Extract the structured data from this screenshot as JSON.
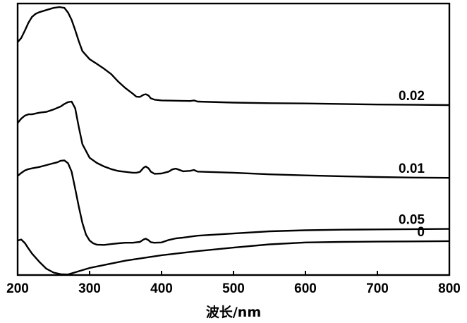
{
  "chart_data": {
    "type": "line",
    "xlabel": "波长/nm",
    "ylabel": "",
    "xlim": [
      200,
      800
    ],
    "xticks": [
      "200",
      "300",
      "400",
      "500",
      "600",
      "700",
      "800"
    ],
    "y_ticks_shown": false,
    "grid": false,
    "legend": "labels at right end of each curve",
    "series": [
      {
        "name": "0.02",
        "x": [
          200,
          205,
          210,
          215,
          220,
          225,
          230,
          240,
          250,
          258,
          265,
          270,
          275,
          280,
          285,
          290,
          300,
          310,
          320,
          330,
          340,
          350,
          360,
          365,
          370,
          375,
          378,
          382,
          385,
          390,
          400,
          420,
          440,
          445,
          450,
          500,
          550,
          600,
          650,
          700,
          750,
          800
        ],
        "y": [
          0.858,
          0.873,
          0.9,
          0.929,
          0.951,
          0.962,
          0.968,
          0.976,
          0.984,
          0.987,
          0.984,
          0.967,
          0.94,
          0.902,
          0.861,
          0.825,
          0.795,
          0.778,
          0.76,
          0.74,
          0.712,
          0.688,
          0.668,
          0.657,
          0.656,
          0.664,
          0.666,
          0.661,
          0.651,
          0.646,
          0.643,
          0.642,
          0.641,
          0.643,
          0.639,
          0.635,
          0.633,
          0.632,
          0.63,
          0.628,
          0.627,
          0.626
        ]
      },
      {
        "name": "0.01",
        "x": [
          200,
          205,
          210,
          215,
          220,
          230,
          240,
          250,
          260,
          265,
          270,
          275,
          280,
          285,
          290,
          300,
          310,
          320,
          330,
          340,
          350,
          360,
          365,
          370,
          375,
          378,
          382,
          385,
          390,
          400,
          410,
          415,
          420,
          430,
          440,
          445,
          450,
          500,
          550,
          600,
          650,
          700,
          750,
          800
        ],
        "y": [
          0.56,
          0.576,
          0.587,
          0.592,
          0.592,
          0.598,
          0.601,
          0.61,
          0.621,
          0.63,
          0.637,
          0.639,
          0.614,
          0.545,
          0.482,
          0.432,
          0.413,
          0.4,
          0.39,
          0.383,
          0.38,
          0.377,
          0.377,
          0.38,
          0.395,
          0.4,
          0.393,
          0.381,
          0.373,
          0.374,
          0.381,
          0.389,
          0.392,
          0.382,
          0.384,
          0.387,
          0.381,
          0.377,
          0.371,
          0.367,
          0.364,
          0.361,
          0.359,
          0.358
        ]
      },
      {
        "name": "0.05",
        "x": [
          200,
          205,
          210,
          215,
          220,
          230,
          240,
          250,
          255,
          260,
          265,
          270,
          275,
          280,
          285,
          290,
          295,
          300,
          305,
          310,
          320,
          330,
          340,
          350,
          360,
          370,
          375,
          378,
          382,
          385,
          390,
          400,
          410,
          420,
          430,
          450,
          500,
          550,
          600,
          650,
          700,
          750,
          800
        ],
        "y": [
          0.365,
          0.376,
          0.385,
          0.39,
          0.393,
          0.398,
          0.405,
          0.412,
          0.415,
          0.421,
          0.422,
          0.412,
          0.381,
          0.318,
          0.252,
          0.192,
          0.149,
          0.127,
          0.117,
          0.112,
          0.111,
          0.114,
          0.117,
          0.119,
          0.119,
          0.122,
          0.131,
          0.134,
          0.128,
          0.121,
          0.119,
          0.12,
          0.129,
          0.135,
          0.138,
          0.145,
          0.153,
          0.161,
          0.165,
          0.167,
          0.168,
          0.169,
          0.17
        ]
      },
      {
        "name": "0",
        "x": [
          200,
          205,
          210,
          215,
          220,
          230,
          240,
          250,
          260,
          270,
          280,
          300,
          350,
          400,
          450,
          500,
          550,
          600,
          650,
          700,
          750,
          800
        ],
        "y": [
          0.127,
          0.131,
          0.118,
          0.098,
          0.079,
          0.049,
          0.023,
          0.009,
          0.003,
          0.002,
          0.01,
          0.026,
          0.053,
          0.073,
          0.088,
          0.101,
          0.113,
          0.12,
          0.122,
          0.123,
          0.124,
          0.125
        ]
      }
    ]
  }
}
